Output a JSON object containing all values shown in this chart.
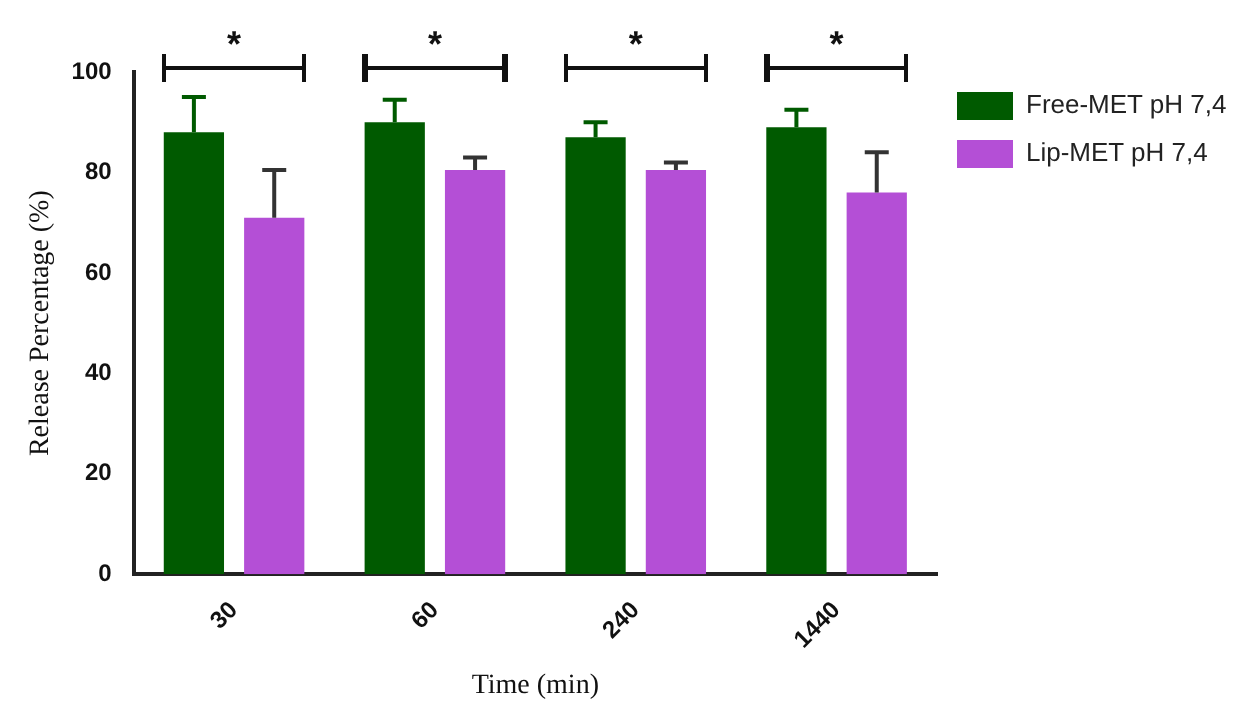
{
  "chart_data": {
    "type": "bar",
    "xlabel": "Time (min)",
    "ylabel": "Release Percentage (%)",
    "categories": [
      "30",
      "60",
      "240",
      "1440"
    ],
    "series": [
      {
        "name": "Free-MET pH 7,4",
        "color": "#005a00",
        "values": [
          88,
          90,
          87,
          89
        ],
        "errors": [
          [
            88,
            95
          ],
          [
            90,
            94.5
          ],
          [
            87,
            90
          ],
          [
            89,
            92.5
          ]
        ]
      },
      {
        "name": "Lip-MET pH 7,4",
        "color": "#b44fd6",
        "values": [
          71,
          80.5,
          80.5,
          76
        ],
        "errors": [
          [
            71,
            80.5
          ],
          [
            80.5,
            83
          ],
          [
            80.5,
            82
          ],
          [
            76,
            84
          ]
        ]
      }
    ],
    "ylim": [
      0,
      100
    ],
    "yticks": [
      0,
      20,
      40,
      60,
      80,
      100
    ],
    "grid": false,
    "legend": "top right",
    "annotations": [
      "*",
      "*",
      "*",
      "*"
    ]
  }
}
